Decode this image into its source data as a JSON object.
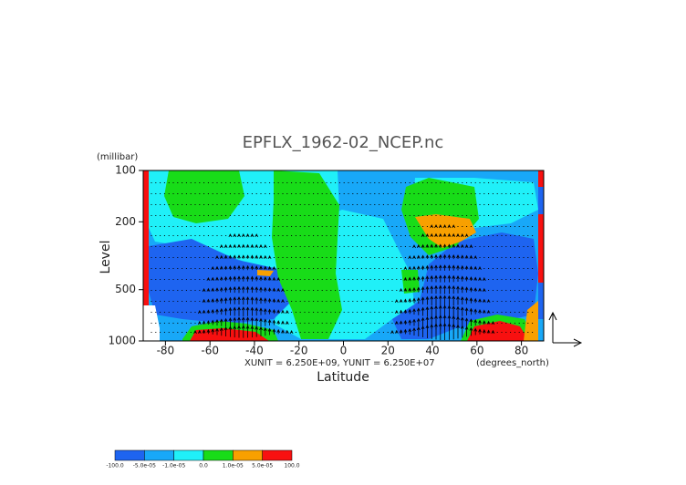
{
  "chart_data": {
    "type": "contour",
    "title": "EPFLX_1962-02_NCEP.nc",
    "ylabel_units": "(millibar)",
    "ylabel": "Level",
    "xlabel": "Latitude",
    "annotation": "XUNIT = 6.250E+09, YUNIT = 6.250E+07",
    "xlabel_units": "(degrees_north)",
    "xlim": [
      -90,
      90
    ],
    "xticks": [
      -80,
      -60,
      -40,
      -20,
      0,
      20,
      40,
      60,
      80
    ],
    "ylim": [
      1000,
      100
    ],
    "log_y": true,
    "yticks": [
      100,
      200,
      500,
      1000
    ],
    "colorbar": {
      "levels": [
        {
          "value": -100,
          "label": "-100.0"
        },
        {
          "value": -5e-05,
          "label": "-5.0e-05"
        },
        {
          "value": -1e-05,
          "label": "-1.0e-05"
        },
        {
          "value": 0,
          "label": "0.0"
        },
        {
          "value": 1e-05,
          "label": "1.0e-05"
        },
        {
          "value": 5e-05,
          "label": "5.0e-05"
        },
        {
          "value": 100,
          "label": "100.0"
        }
      ],
      "colors": [
        "#1e64f0",
        "#18a8f8",
        "#20f0f8",
        "#18dc18",
        "#f8a000",
        "#f81010"
      ]
    }
  }
}
